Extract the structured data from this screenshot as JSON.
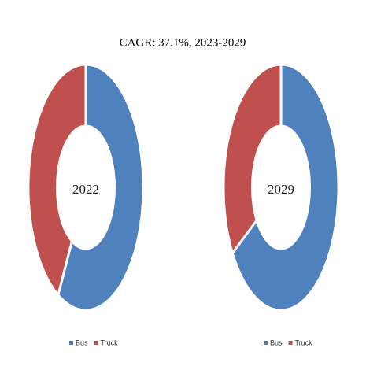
{
  "title": "CAGR: 37.1%, 2023-2029",
  "chart_data": [
    {
      "type": "donut",
      "center_label": "2022",
      "categories": [
        "Bus",
        "Truck"
      ],
      "values": [
        58,
        42
      ],
      "colors": [
        "#4f81bd",
        "#c0504d"
      ]
    },
    {
      "type": "donut",
      "center_label": "2029",
      "categories": [
        "Bus",
        "Truck"
      ],
      "values": [
        66,
        34
      ],
      "colors": [
        "#4f81bd",
        "#c0504d"
      ]
    }
  ]
}
